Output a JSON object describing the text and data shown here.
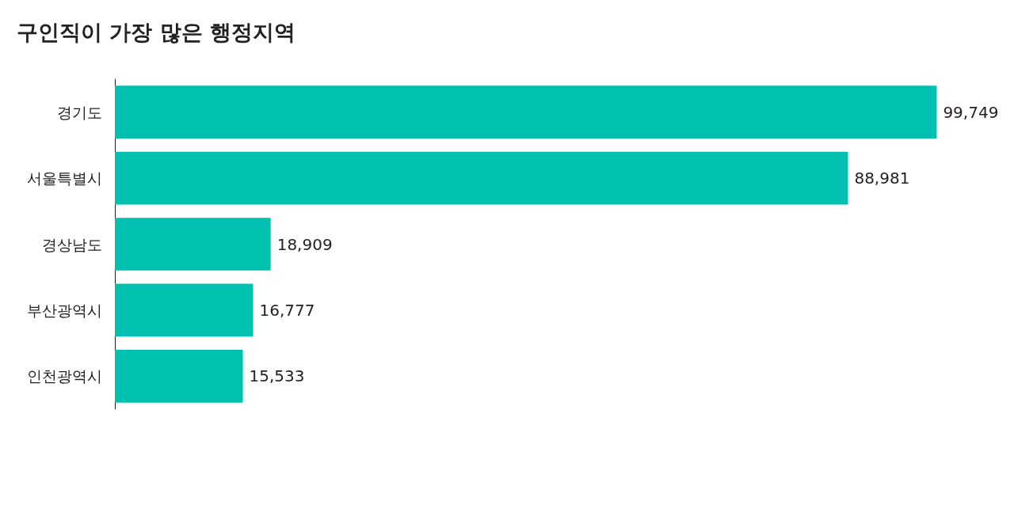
{
  "chart_data": {
    "type": "bar",
    "orientation": "horizontal",
    "title": "구인직이 가장 많은 행정지역",
    "categories": [
      "경기도",
      "서울특별시",
      "경상남도",
      "부산광역시",
      "인천광역시"
    ],
    "values": [
      99749,
      88981,
      18909,
      16777,
      15533
    ],
    "value_labels": [
      "99,749",
      "88,981",
      "18,909",
      "16,777",
      "15,533"
    ],
    "color": "#00c1b0"
  }
}
